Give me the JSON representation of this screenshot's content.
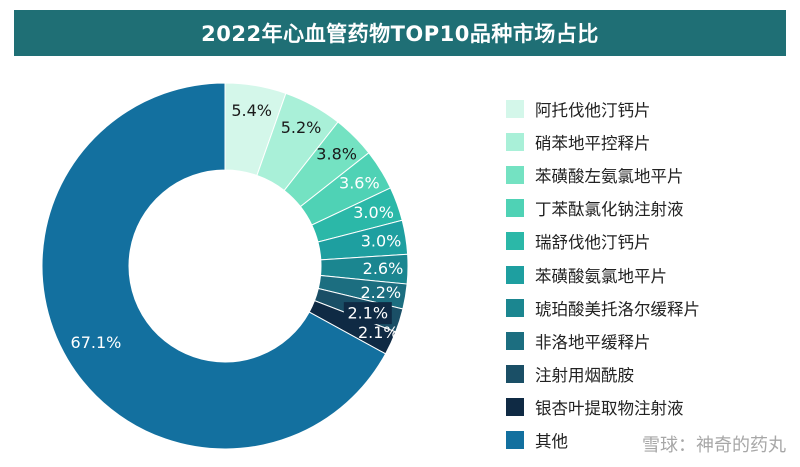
{
  "chart_data": {
    "type": "pie",
    "title": "2022年心血管药物TOP10品种市场占比",
    "donut": true,
    "legend_position": "right",
    "categories": [
      "阿托伐他汀钙片",
      "硝苯地平控释片",
      "苯磺酸左氨氯地平片",
      "丁苯酞氯化钠注射液",
      "瑞舒伐他汀钙片",
      "苯磺酸氨氯地平片",
      "琥珀酸美托洛尔缓释片",
      "非洛地平缓释片",
      "注射用烟酰胺",
      "银杏叶提取物注射液",
      "其他"
    ],
    "values": [
      5.4,
      5.2,
      3.8,
      3.6,
      3.0,
      3.0,
      2.6,
      2.2,
      2.1,
      2.1,
      67.1
    ],
    "data_labels": [
      "5.4%",
      "5.2%",
      "3.8%",
      "3.6%",
      "3.0%",
      "3.0%",
      "2.6%",
      "2.2%",
      "2.1%",
      "2.1%",
      "67.1%"
    ],
    "colors": [
      "#d4f7ea",
      "#a9f0d8",
      "#74e2c2",
      "#4fd2b5",
      "#2bb8a8",
      "#1e9fa0",
      "#1b8690",
      "#1c6e80",
      "#1a4f66",
      "#0f2a44",
      "#13709f"
    ]
  },
  "watermark": "雪球：神奇的药丸"
}
